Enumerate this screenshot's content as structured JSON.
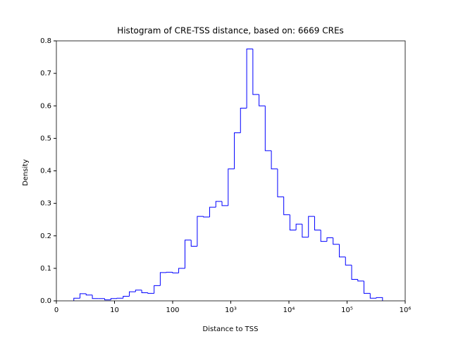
{
  "chart_data": {
    "type": "histogram",
    "title": "Histogram of CRE-TSS distance, based on: 6669 CREs",
    "xlabel": "Distance to TSS",
    "ylabel": "Density",
    "xscale": "symlog",
    "linthresh": 10,
    "color": "#0000ff",
    "bins": [
      3.0,
      4.06,
      5.12,
      6.19,
      7.25,
      8.31,
      9.37,
      11.05,
      14.1,
      18.0,
      23.0,
      29.4,
      37.5,
      48.0,
      61.2,
      78.2,
      99.8,
      127,
      163,
      208,
      265,
      339,
      433,
      553,
      706,
      902,
      1151,
      1469,
      1879,
      2399,
      3062,
      3908,
      4989,
      6383,
      8147,
      10400,
      13270,
      16940,
      21680,
      27670,
      35320,
      45080,
      57540,
      73620,
      93980,
      120000,
      153100,
      195400,
      250000,
      319200,
      407400
    ],
    "values": [
      0.008,
      0.022,
      0.018,
      0.007,
      0.007,
      0.003,
      0.007,
      0.008,
      0.014,
      0.028,
      0.033,
      0.025,
      0.023,
      0.047,
      0.087,
      0.088,
      0.086,
      0.1,
      0.187,
      0.168,
      0.26,
      0.258,
      0.288,
      0.306,
      0.293,
      0.406,
      0.517,
      0.593,
      0.775,
      0.635,
      0.6,
      0.462,
      0.406,
      0.32,
      0.265,
      0.218,
      0.236,
      0.196,
      0.26,
      0.218,
      0.183,
      0.194,
      0.174,
      0.135,
      0.11,
      0.066,
      0.061,
      0.023,
      0.008,
      0.01
    ],
    "xlim": [
      0,
      1000000
    ],
    "xticks": [
      0,
      10,
      100,
      {
        "value": 1000,
        "label": "10³"
      },
      {
        "value": 10000,
        "label": "10⁴"
      },
      {
        "value": 100000,
        "label": "10⁵"
      },
      {
        "value": 1000000,
        "label": "10⁶"
      }
    ],
    "ylim": [
      0,
      0.8
    ],
    "yticks": [
      {
        "value": 0,
        "label": "0.0"
      },
      0.1,
      0.2,
      0.3,
      0.4,
      0.5,
      0.6,
      0.7,
      0.8
    ]
  }
}
